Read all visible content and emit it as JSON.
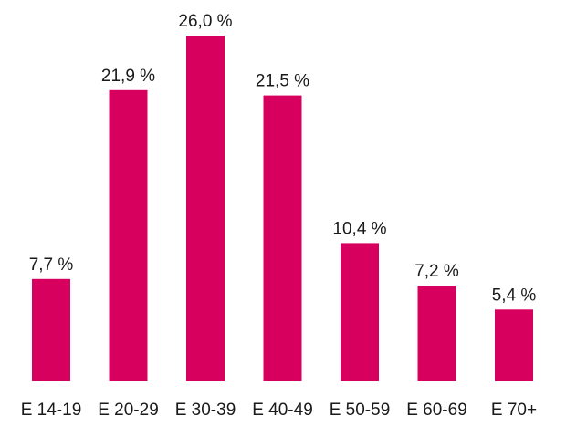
{
  "chart_data": {
    "type": "bar",
    "categories": [
      "E 14-19",
      "E 20-29",
      "E 30-39",
      "E 40-49",
      "E 50-59",
      "E 60-69",
      "E 70+"
    ],
    "values": [
      7.7,
      21.9,
      26.0,
      21.5,
      10.4,
      7.2,
      5.4
    ],
    "data_labels": [
      "7,7 %",
      "21,9 %",
      "26,0 %",
      "21,5 %",
      "10,4 %",
      "7,2 %",
      "5,4 %"
    ],
    "title": "",
    "xlabel": "",
    "ylabel": "",
    "ylim": [
      0,
      26.0
    ],
    "grid": false,
    "colors": {
      "bar": "#d8005f",
      "text": "#1a1a1a",
      "background": "#ffffff"
    }
  }
}
